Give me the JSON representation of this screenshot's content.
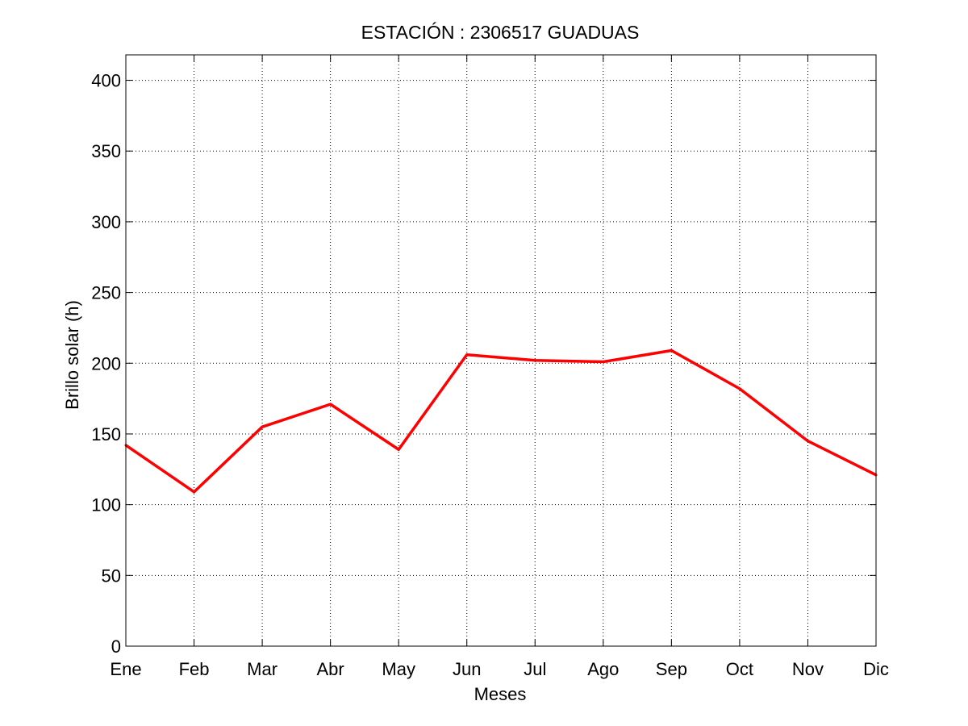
{
  "chart_data": {
    "type": "line",
    "title": "ESTACIÓN :  2306517  GUADUAS",
    "xlabel": "Meses",
    "ylabel": "Brillo solar (h)",
    "categories": [
      "Ene",
      "Feb",
      "Mar",
      "Abr",
      "May",
      "Jun",
      "Jul",
      "Ago",
      "Sep",
      "Oct",
      "Nov",
      "Dic"
    ],
    "series": [
      {
        "values": [
          142,
          109,
          155,
          171,
          139,
          206,
          202,
          201,
          209,
          182,
          145,
          121
        ],
        "color": "#ff0000"
      }
    ],
    "ylim": [
      0,
      418
    ],
    "yticks": [
      0,
      50,
      100,
      150,
      200,
      250,
      300,
      350,
      400
    ],
    "grid": true,
    "grid_style": "dotted",
    "legend": "none"
  }
}
